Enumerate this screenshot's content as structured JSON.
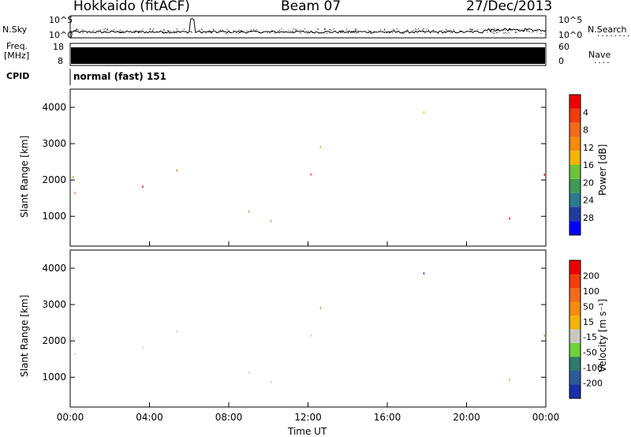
{
  "header": {
    "station": "Hokkaido (fitACF)",
    "beam": "Beam 07",
    "date": "27/Dec/2013"
  },
  "left_labels": {
    "nsky": "N.Sky",
    "freq": "Freq.",
    "freq_unit": "[MHz]",
    "cpid": "CPID"
  },
  "right_labels": {
    "nsearch": "N.Search",
    "nsearch_dots": "........",
    "nave": "Nave",
    "nave_dots": "...."
  },
  "cpid_text": "normal (fast) 151",
  "chart_data": [
    {
      "type": "line",
      "name": "noise-panel",
      "left_ticks": [
        "10^5",
        "10^0"
      ],
      "right_ticks": [
        "10^5",
        "10^0"
      ]
    },
    {
      "type": "bar",
      "name": "frequency-panel",
      "left_ticks": [
        "18",
        "8"
      ],
      "right_ticks": [
        "60",
        "0"
      ]
    },
    {
      "type": "heatmap",
      "name": "power-panel",
      "ylabel": "Slant Range [km]",
      "yticks": [
        1000,
        2000,
        3000,
        4000
      ],
      "ylim": [
        180,
        4500
      ],
      "xlim": [
        0,
        24
      ],
      "colorbar": {
        "label": "Power [dB]",
        "ticks": [
          "4",
          "8",
          "12",
          "16",
          "20",
          "24",
          "28"
        ],
        "colors": [
          "#0000ff",
          "#1e3c9c",
          "#2b7a8f",
          "#3f9a55",
          "#6cc23a",
          "#f2b40a",
          "#f58b10",
          "#f26a1a",
          "#ef3c10",
          "#ee0000"
        ]
      }
    },
    {
      "type": "heatmap",
      "name": "velocity-panel",
      "ylabel": "Slant Range [km]",
      "ylabel_unit": "Velocity [m s⁻¹]",
      "yticks": [
        1000,
        2000,
        3000,
        4000
      ],
      "ylim": [
        180,
        4500
      ],
      "xlim": [
        0,
        24
      ],
      "xlabel": "Time UT",
      "xticks": [
        "00:00",
        "04:00",
        "08:00",
        "12:00",
        "16:00",
        "20:00",
        "00:00"
      ],
      "colorbar": {
        "label": "Velocity [m s⁻¹]",
        "ticks": [
          "200",
          "100",
          "50",
          "15",
          "-15",
          "-50",
          "-100",
          "-200"
        ],
        "colors": [
          "#1a2fa8",
          "#2a5c9a",
          "#2f7a6a",
          "#6fd23a",
          "#c8c8c0",
          "#f2b40a",
          "#f58b10",
          "#f26a1a",
          "#ef3c10",
          "#ee0000"
        ]
      }
    }
  ]
}
